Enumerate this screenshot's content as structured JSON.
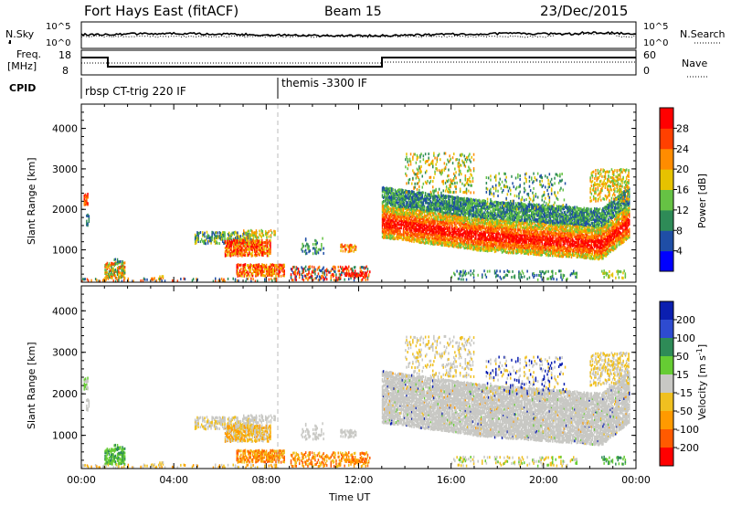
{
  "header": {
    "station": "Fort Hays East (fitACF)",
    "beam": "Beam 15",
    "date": "23/Dec/2015"
  },
  "top_panels": {
    "nsky_label": "N.Sky",
    "nsearch_label": "N.Search",
    "nsky_ticks": [
      "10^5",
      "10^0"
    ],
    "nsearch_ticks": [
      "10^5",
      "10^0"
    ],
    "freq_label_line1": "Freq.",
    "freq_label_line2": "[MHz]",
    "freq_ticks": [
      "18",
      "8"
    ],
    "nave_label": "Nave",
    "nave_ticks": [
      "60",
      "0"
    ],
    "cpid_label": "CPID",
    "cpid_segments": [
      {
        "label": "rbsp CT-trig 220 IF",
        "start_h": 0.0
      },
      {
        "label": "themis -3300 IF",
        "start_h": 8.65
      }
    ]
  },
  "chart_data": [
    {
      "type": "heatmap",
      "name": "power-panel",
      "ylabel": "Slant Range [km]",
      "xlabel": "",
      "xlim": [
        0,
        24
      ],
      "ylim": [
        200,
        4600
      ],
      "yticks": [
        "1000",
        "2000",
        "3000",
        "4000"
      ],
      "colorbar": {
        "label": "Power [dB]",
        "ticks": [
          "4",
          "8",
          "12",
          "16",
          "20",
          "24",
          "28"
        ],
        "colors": [
          "#0000ff",
          "#1f4ea6",
          "#2e8b57",
          "#66c244",
          "#e6c200",
          "#ff8c00",
          "#ff4000",
          "#ff0000"
        ]
      }
    },
    {
      "type": "heatmap",
      "name": "velocity-panel",
      "ylabel": "Slant Range [km]",
      "xlabel": "Time UT",
      "xlim": [
        0,
        24
      ],
      "ylim": [
        200,
        4600
      ],
      "yticks": [
        "1000",
        "2000",
        "3000",
        "4000"
      ],
      "xticks": [
        "00:00",
        "04:00",
        "08:00",
        "12:00",
        "16:00",
        "20:00",
        "00:00"
      ],
      "colorbar": {
        "label": "Velocity [m s",
        "label_sup": "-1",
        "label_end": "]",
        "ticks": [
          "200",
          "100",
          "50",
          "15",
          "-15",
          "-50",
          "-100",
          "-200"
        ],
        "colors": [
          "#0b1fb0",
          "#2e4bd0",
          "#2e8b57",
          "#66cc33",
          "#c8c8c4",
          "#f0c020",
          "#ff9a00",
          "#ff5a00",
          "#ff0000"
        ]
      }
    }
  ]
}
